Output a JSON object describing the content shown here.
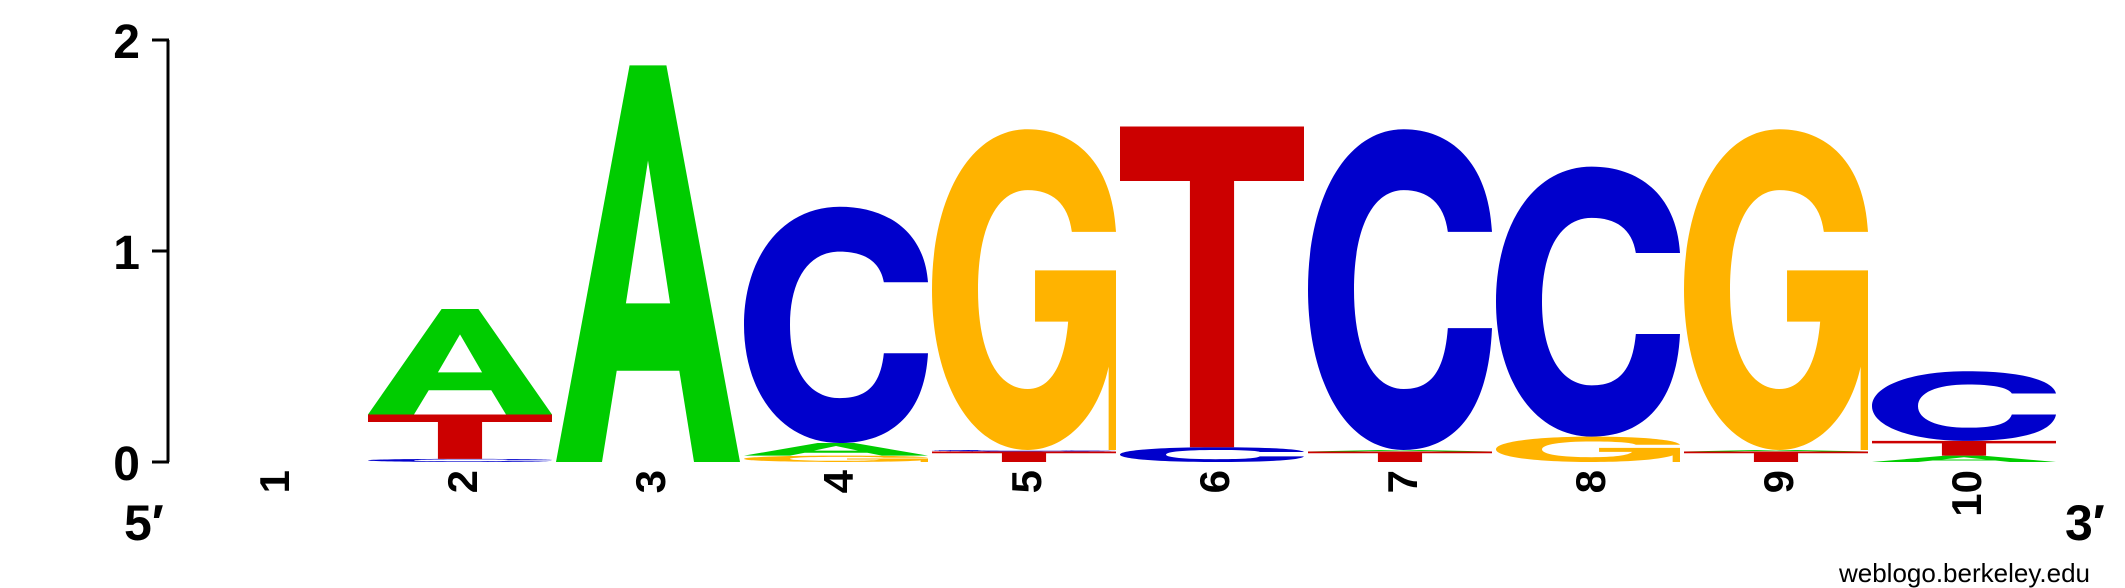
{
  "chart_data": {
    "type": "sequence-logo",
    "ylabel": "",
    "ylim": [
      0,
      2
    ],
    "y_ticks": [
      "0",
      "1",
      "2"
    ],
    "positions": [
      "1",
      "2",
      "3",
      "4",
      "5",
      "6",
      "7",
      "8",
      "9",
      "10"
    ],
    "end_labels": {
      "left": "5′",
      "right": "3′"
    },
    "colors": {
      "A": "#00cc00",
      "C": "#0000cc",
      "G": "#ffb300",
      "T": "#cc0000",
      "axis": "#000000"
    },
    "stacks": [
      [],
      [
        {
          "letter": "C",
          "height": 0.015
        },
        {
          "letter": "T",
          "height": 0.21
        },
        {
          "letter": "A",
          "height": 0.5
        }
      ],
      [
        {
          "letter": "A",
          "height": 1.88
        }
      ],
      [
        {
          "letter": "G",
          "height": 0.03
        },
        {
          "letter": "A",
          "height": 0.06
        },
        {
          "letter": "C",
          "height": 1.12
        }
      ],
      [
        {
          "letter": "T",
          "height": 0.05
        },
        {
          "letter": "C",
          "height": 0.005
        },
        {
          "letter": "G",
          "height": 1.52
        }
      ],
      [
        {
          "letter": "C",
          "height": 0.07
        },
        {
          "letter": "T",
          "height": 1.52
        }
      ],
      [
        {
          "letter": "T",
          "height": 0.05
        },
        {
          "letter": "A",
          "height": 0.005
        },
        {
          "letter": "C",
          "height": 1.52
        }
      ],
      [
        {
          "letter": "G",
          "height": 0.12
        },
        {
          "letter": "C",
          "height": 1.28
        }
      ],
      [
        {
          "letter": "T",
          "height": 0.05
        },
        {
          "letter": "A",
          "height": 0.005
        },
        {
          "letter": "G",
          "height": 1.52
        }
      ],
      [
        {
          "letter": "A",
          "height": 0.03
        },
        {
          "letter": "T",
          "height": 0.07
        },
        {
          "letter": "C",
          "height": 0.33
        }
      ]
    ]
  },
  "credit": "weblogo.berkeley.edu"
}
